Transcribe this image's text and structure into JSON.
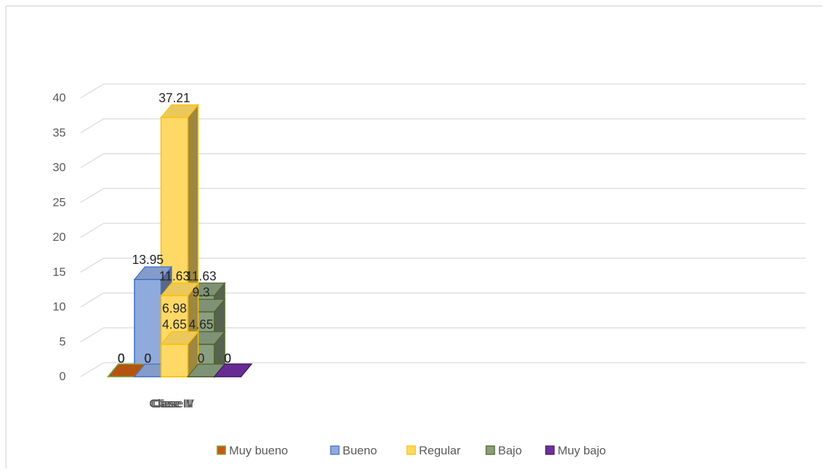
{
  "chart_data": {
    "type": "bar",
    "categories": [
      "Clase I",
      "Clase II",
      "Clase III",
      "Clase IV"
    ],
    "series": [
      {
        "name": "Muy bueno",
        "values": [
          0,
          0,
          0,
          0
        ],
        "color": "#c55a11",
        "edge": "#70ad47"
      },
      {
        "name": "Bueno",
        "values": [
          0,
          0,
          13.95,
          0
        ],
        "color": "#8faadc",
        "edge": "#4472c4"
      },
      {
        "name": "Regular",
        "values": [
          6.98,
          37.21,
          11.63,
          4.65
        ],
        "color": "#ffd966",
        "edge": "#ffc000"
      },
      {
        "name": "Bajo",
        "values": [
          11.63,
          9.3,
          4.65,
          0
        ],
        "color": "#8a9f80",
        "edge": "#4f6228"
      },
      {
        "name": "Muy bajo",
        "values": [
          0,
          0,
          0,
          0
        ],
        "color": "#7030a0",
        "edge": "#3f1d5e"
      }
    ],
    "data_labels": [
      [
        "0",
        "0",
        "0",
        "0"
      ],
      [
        "0",
        "0",
        "13.95",
        "0"
      ],
      [
        "6.98",
        "37.21",
        "11.63",
        "4.65"
      ],
      [
        "11.63",
        "9.3",
        "4.65",
        "0"
      ],
      [
        "0",
        "0",
        "0",
        "0"
      ]
    ],
    "y_ticks": [
      "0",
      "5",
      "10",
      "15",
      "20",
      "25",
      "30",
      "35",
      "40"
    ],
    "ylim": [
      0,
      40
    ],
    "grid": true,
    "legend_position": "bottom",
    "style": "3d-clustered-column"
  }
}
